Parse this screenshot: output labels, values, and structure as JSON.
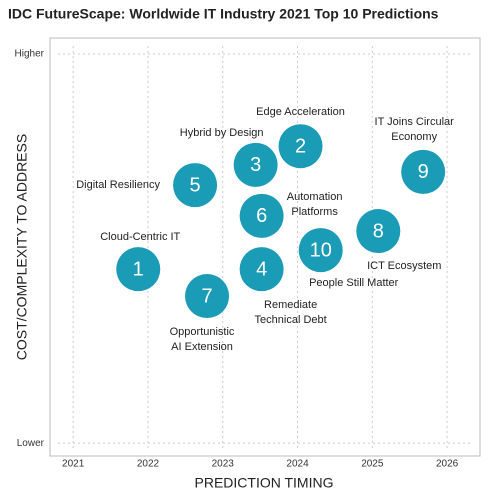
{
  "chart_data": {
    "type": "scatter",
    "title": "IDC FutureScape: Worldwide IT Industry 2021 Top 10 Predictions",
    "x_label": "PREDICTION TIMING",
    "y_label": "COST/COMPLEXITY TO ADDRESS",
    "xlim": [
      2020.69,
      2026.44
    ],
    "xticks": [
      2021,
      2022,
      2023,
      2024,
      2025,
      2026
    ],
    "ylim": [
      -0.33,
      10.41
    ],
    "yticks": [
      {
        "value": 0,
        "label": "Lower"
      },
      {
        "value": 10,
        "label": "Higher"
      }
    ],
    "grid": true,
    "color": "#1a9bb6",
    "point_labels": [
      1,
      2,
      3,
      4,
      5,
      6,
      7,
      8,
      9,
      10
    ],
    "x": [
      2021.87,
      2024.04,
      2023.44,
      2023.52,
      2022.63,
      2023.52,
      2022.79,
      2025.08,
      2025.68,
      2024.31
    ],
    "values": [
      4.47,
      7.63,
      7.15,
      4.47,
      6.63,
      5.84,
      3.78,
      5.45,
      6.97,
      4.96
    ],
    "annotations": [
      [
        "Cloud-Centric IT"
      ],
      [
        "Edge Acceleration"
      ],
      [
        "Hybrid by Design"
      ],
      [
        "Remediate",
        "Technical Debt"
      ],
      [
        "Digital Resiliency"
      ],
      [
        "Automation",
        "Platforms"
      ],
      [
        "Opportunistic",
        "AI Extension"
      ],
      [
        "ICT Ecosystem"
      ],
      [
        "IT Joins Circular",
        "Economy"
      ],
      [
        "People Still Matter"
      ]
    ]
  }
}
